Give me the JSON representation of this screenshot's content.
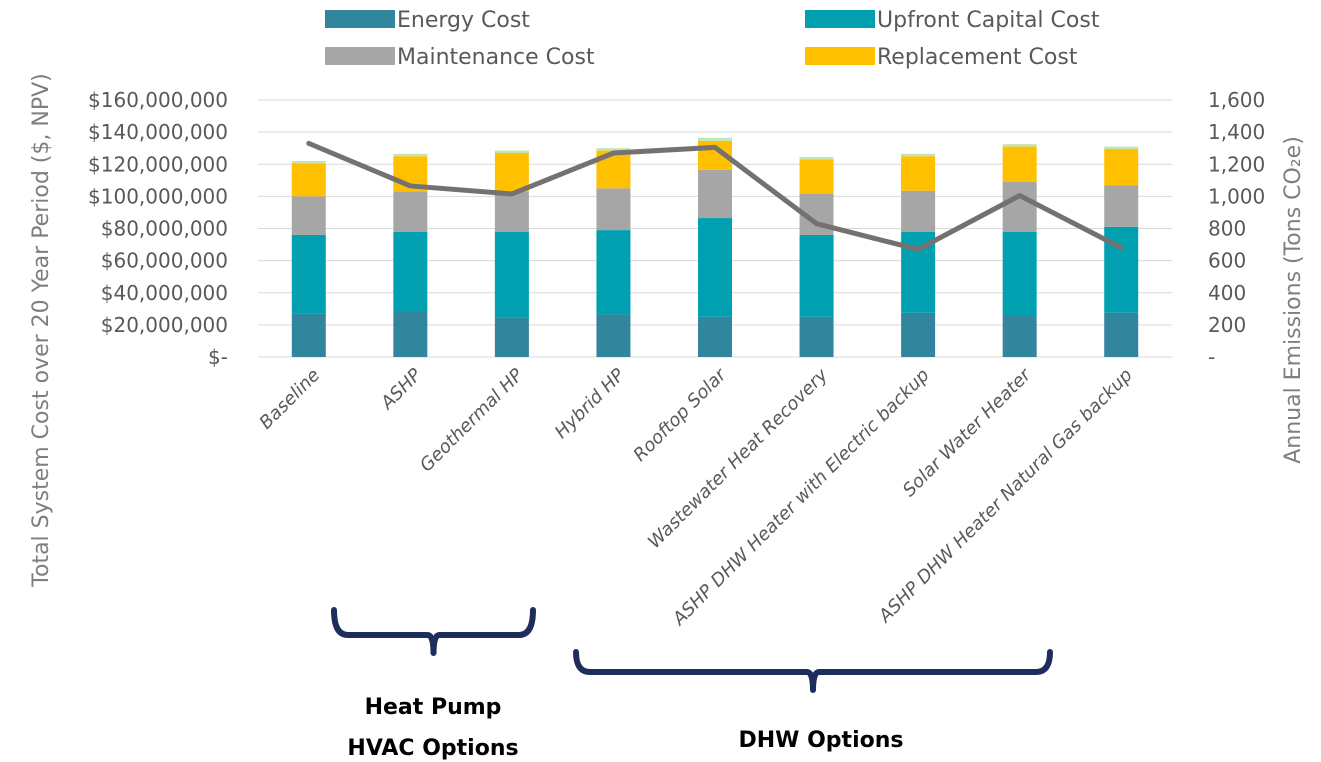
{
  "chart_data": {
    "type": "bar",
    "stacked": true,
    "categories": [
      "Baseline",
      "ASHP",
      "Geothermal HP",
      "Hybrid HP",
      "Rooftop Solar",
      "Wastewater Heat Recovery",
      "ASHP DHW Heater with Electric backup",
      "Solar Water Heater",
      "ASHP DHW Heater Natural Gas backup"
    ],
    "series": [
      {
        "name": "Energy Cost",
        "color": "#31859c",
        "values": [
          27000000,
          28000000,
          24500000,
          26500000,
          25000000,
          25000000,
          27500000,
          25500000,
          27500000
        ]
      },
      {
        "name": "Upfront Capital Cost",
        "color": "#00a0b0",
        "values": [
          49000000,
          50000000,
          53500000,
          52500000,
          61500000,
          51000000,
          50500000,
          52500000,
          53500000
        ]
      },
      {
        "name": "Maintenance Cost",
        "color": "#a6a6a6",
        "values": [
          24000000,
          25000000,
          25000000,
          26000000,
          30000000,
          25500000,
          25500000,
          31000000,
          26000000
        ]
      },
      {
        "name": "Replacement Cost",
        "color": "#ffc000",
        "values": [
          20500000,
          22000000,
          24000000,
          23500000,
          18000000,
          21500000,
          21500000,
          22000000,
          22500000
        ]
      },
      {
        "name": "",
        "color": "#c3e6b1",
        "values": [
          1500000,
          1500000,
          1500000,
          1500000,
          2000000,
          1500000,
          1500000,
          1500000,
          1500000
        ]
      }
    ],
    "line_series": {
      "name": "Annual Emissions",
      "color": "#767171",
      "axis": "right",
      "values": [
        1330,
        1065,
        1015,
        1270,
        1305,
        830,
        670,
        1005,
        680
      ]
    },
    "y_left": {
      "label": "Total System Cost over 20 Year Period ($, NPV)",
      "ylim": [
        0,
        160000000
      ],
      "ticks": [
        "$-",
        "$20,000,000",
        "$40,000,000",
        "$60,000,000",
        "$80,000,000",
        "$100,000,000",
        "$120,000,000",
        "$140,000,000",
        "$160,000,000"
      ]
    },
    "y_right": {
      "label": "Annual Emissions (Tons CO₂e)",
      "ylim": [
        0,
        1600
      ],
      "ticks": [
        "-",
        "200",
        "400",
        "600",
        "800",
        "1,000",
        "1,200",
        "1,400",
        "1,600"
      ]
    },
    "grid": true,
    "legend": "top",
    "annotations": [
      {
        "label_lines": [
          "Heat Pump",
          "HVAC Options"
        ],
        "from": 1,
        "to": 2
      },
      {
        "label_lines": [
          "DHW Options"
        ],
        "from": 4,
        "to": 8
      }
    ],
    "bracket_color": "#1f2d5c"
  }
}
